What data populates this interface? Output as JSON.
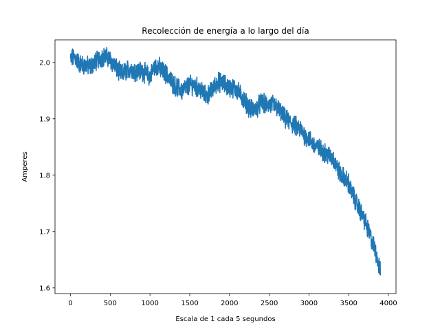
{
  "chart_data": {
    "type": "line",
    "title": "Recolección de energía a lo largo del día",
    "xlabel": "Escala de 1 cada 5 segundos",
    "ylabel": "Amperes",
    "xlim": [
      -195,
      4095
    ],
    "ylim": [
      1.59,
      2.04
    ],
    "x_ticks": [
      0,
      500,
      1000,
      1500,
      2000,
      2500,
      3000,
      3500,
      4000
    ],
    "x_tick_labels": [
      "0",
      "500",
      "1000",
      "1500",
      "2000",
      "2500",
      "3000",
      "3500",
      "4000"
    ],
    "y_ticks": [
      1.6,
      1.7,
      1.8,
      1.9,
      2.0
    ],
    "y_tick_labels": [
      "1.6",
      "1.7",
      "1.8",
      "1.9",
      "2.0"
    ],
    "grid": false,
    "legend": "none",
    "series": [
      {
        "color": "#1f77b4",
        "x": [
          0,
          50,
          100,
          150,
          200,
          250,
          300,
          350,
          400,
          450,
          500,
          550,
          600,
          650,
          700,
          750,
          800,
          850,
          900,
          950,
          1000,
          1050,
          1100,
          1150,
          1200,
          1250,
          1300,
          1350,
          1400,
          1450,
          1500,
          1550,
          1600,
          1650,
          1700,
          1750,
          1800,
          1850,
          1900,
          1950,
          2000,
          2050,
          2100,
          2150,
          2200,
          2250,
          2300,
          2350,
          2400,
          2450,
          2500,
          2550,
          2600,
          2650,
          2700,
          2750,
          2800,
          2850,
          2900,
          2950,
          3000,
          3050,
          3100,
          3150,
          3200,
          3250,
          3300,
          3350,
          3400,
          3450,
          3500,
          3550,
          3600,
          3650,
          3700,
          3750,
          3800,
          3850,
          3900
        ],
        "y": [
          2.005,
          2.01,
          2.0,
          1.995,
          1.995,
          1.992,
          2.0,
          2.005,
          2.01,
          2.01,
          2.005,
          1.995,
          1.985,
          1.98,
          1.985,
          1.99,
          1.985,
          1.985,
          1.985,
          1.98,
          1.975,
          1.99,
          1.995,
          1.985,
          1.98,
          1.97,
          1.96,
          1.955,
          1.95,
          1.955,
          1.96,
          1.96,
          1.955,
          1.95,
          1.94,
          1.945,
          1.955,
          1.965,
          1.965,
          1.96,
          1.955,
          1.955,
          1.95,
          1.94,
          1.93,
          1.92,
          1.915,
          1.92,
          1.93,
          1.925,
          1.925,
          1.925,
          1.92,
          1.91,
          1.9,
          1.895,
          1.89,
          1.885,
          1.88,
          1.87,
          1.865,
          1.855,
          1.85,
          1.845,
          1.84,
          1.835,
          1.83,
          1.815,
          1.8,
          1.795,
          1.785,
          1.765,
          1.75,
          1.735,
          1.72,
          1.7,
          1.68,
          1.66,
          1.625
        ]
      }
    ]
  }
}
